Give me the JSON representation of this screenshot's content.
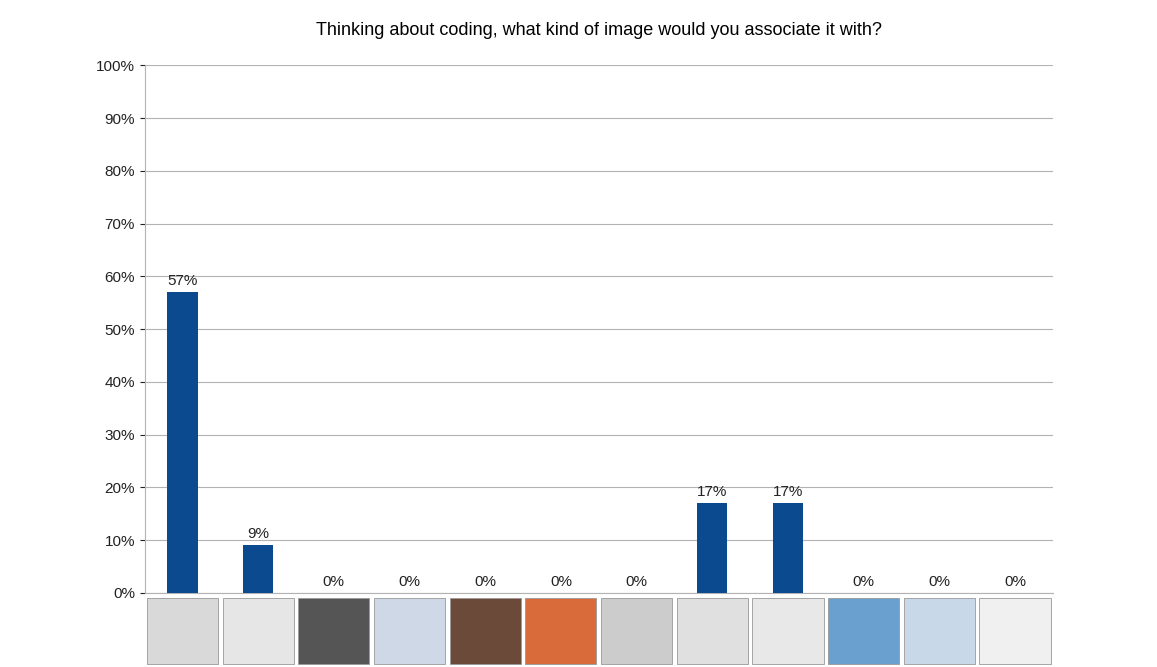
{
  "chart_data": {
    "type": "bar",
    "title": "Thinking about coding, what kind of image would you associate it with?",
    "categories": [
      null,
      null,
      null,
      null,
      null,
      null,
      null,
      null,
      null,
      null,
      null,
      null
    ],
    "values": [
      57,
      9,
      0,
      0,
      0,
      0,
      0,
      17,
      17,
      0,
      0,
      0
    ],
    "value_labels": [
      "57%",
      "9%",
      "0%",
      "0%",
      "0%",
      "0%",
      "0%",
      "17%",
      "17%",
      "0%",
      "0%",
      "0%"
    ],
    "data_labels": true,
    "color": "#0b4a8e",
    "ylim": [
      0,
      100
    ],
    "yticks": [
      {
        "value": 0,
        "label": "0%"
      },
      {
        "value": 10,
        "label": "10%"
      },
      {
        "value": 20,
        "label": "20%"
      },
      {
        "value": 30,
        "label": "30%"
      },
      {
        "value": 40,
        "label": "40%"
      },
      {
        "value": 50,
        "label": "50%"
      },
      {
        "value": 60,
        "label": "60%"
      },
      {
        "value": 70,
        "label": "70%"
      },
      {
        "value": 80,
        "label": "80%"
      },
      {
        "value": 90,
        "label": "90%"
      },
      {
        "value": 100,
        "label": "100%"
      }
    ],
    "grid": true
  }
}
